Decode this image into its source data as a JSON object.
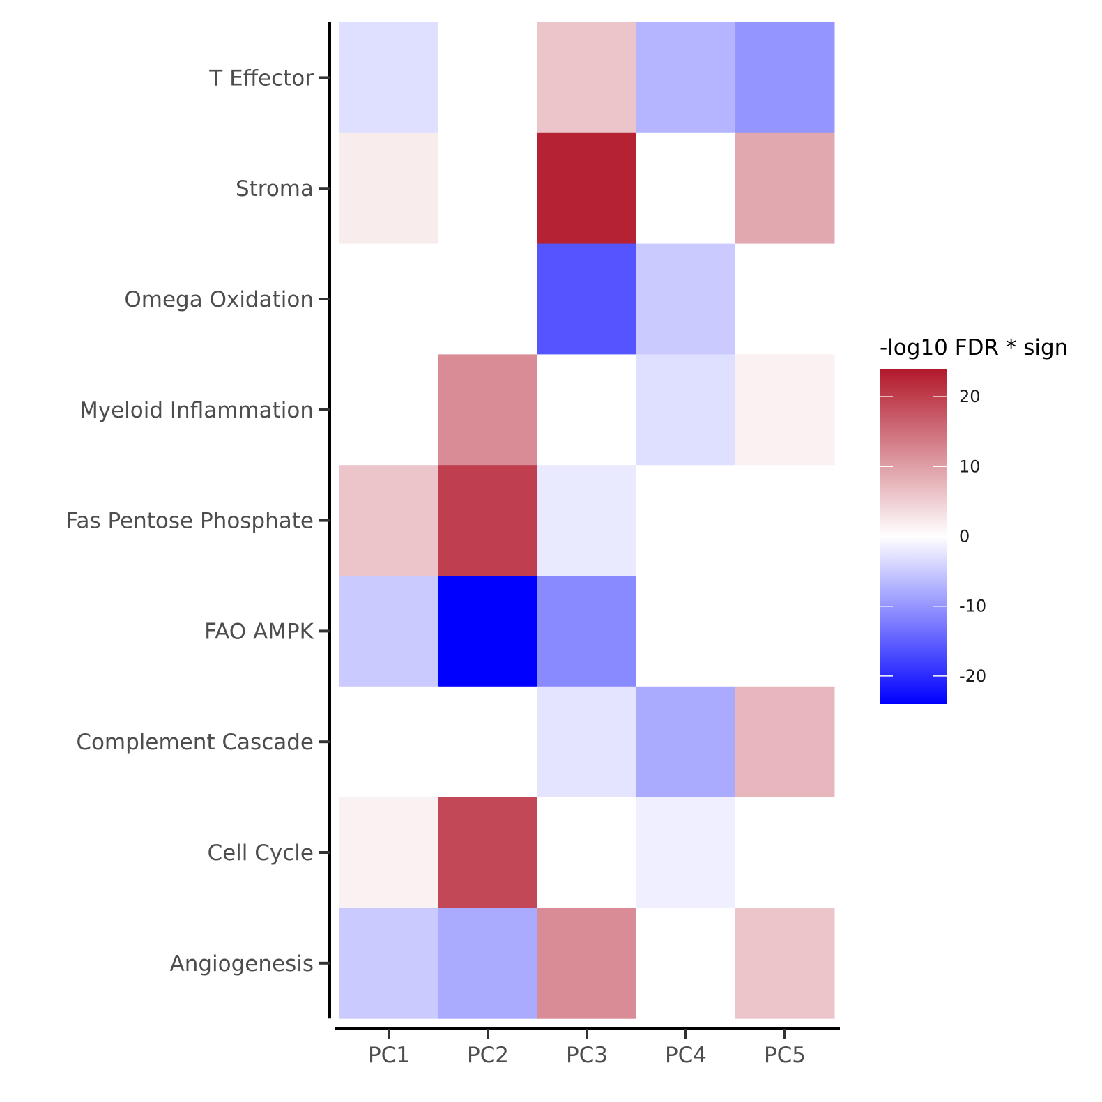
{
  "chart_data": {
    "type": "heatmap",
    "title": "",
    "xlabel": "",
    "ylabel": "",
    "x_categories": [
      "PC1",
      "PC2",
      "PC3",
      "PC4",
      "PC5"
    ],
    "y_categories": [
      "T Effector",
      "Stroma",
      "Omega Oxidation",
      "Myeloid Inflammation",
      "Fas Pentose Phosphate",
      "FAO AMPK",
      "Complement Cascade",
      "Cell Cycle",
      "Angiogenesis"
    ],
    "values": [
      [
        -3,
        0,
        6,
        -7,
        -10
      ],
      [
        2,
        0,
        23,
        0,
        9
      ],
      [
        0,
        0,
        -16,
        -5,
        0
      ],
      [
        0,
        12,
        0,
        -3,
        1.5
      ],
      [
        6,
        20,
        -2,
        0,
        0
      ],
      [
        -5,
        -24,
        -11,
        0,
        0
      ],
      [
        0,
        0,
        -2.5,
        -8,
        7.5
      ],
      [
        1.5,
        19,
        0,
        -1.5,
        0
      ],
      [
        -5,
        -8,
        12,
        0,
        6
      ]
    ],
    "legend": {
      "title": "-log10 FDR * sign",
      "ticks": [
        20,
        10,
        0,
        -10,
        -20
      ],
      "range": [
        -24,
        24
      ],
      "position": "right"
    },
    "colors": {
      "high": "#b2182b",
      "mid": "#ffffff",
      "low": "#0000ff"
    },
    "grid": false
  }
}
